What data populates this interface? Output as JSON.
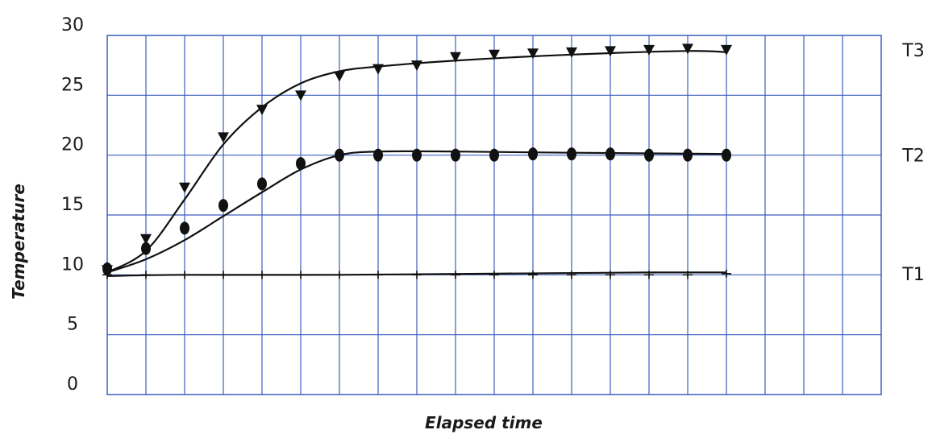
{
  "chart_data": {
    "type": "line",
    "title": "",
    "xlabel": "Elapsed time",
    "ylabel": "Temperature",
    "ylim": [
      0,
      30
    ],
    "yticks": [
      0,
      5,
      10,
      15,
      20,
      25,
      30
    ],
    "x_gridlines": 20,
    "grid": true,
    "legend": "right",
    "colors": {
      "grid": "#3d5fbf",
      "frame": "#3d5fbf",
      "line": "#111111",
      "marker": "#111111"
    },
    "x": [
      0,
      1,
      2,
      3,
      4,
      5,
      6,
      7,
      8,
      9,
      10,
      11,
      12,
      13,
      14,
      15,
      16
    ],
    "series": [
      {
        "name": "T1",
        "marker": "plus",
        "values": [
          10.0,
          10.0,
          10.0,
          10.0,
          10.0,
          10.0,
          10.0,
          10.0,
          10.0,
          10.0,
          10.0,
          10.0,
          10.0,
          10.0,
          10.0,
          10.0,
          10.1
        ],
        "curve": [
          [
            0,
            9.9
          ],
          [
            2,
            10.0
          ],
          [
            6,
            10.0
          ],
          [
            10,
            10.1
          ],
          [
            14,
            10.2
          ],
          [
            16,
            10.2
          ]
        ]
      },
      {
        "name": "T2",
        "marker": "circle",
        "values": [
          10.5,
          12.2,
          13.9,
          15.8,
          17.6,
          19.3,
          20.0,
          20.0,
          20.0,
          20.0,
          20.0,
          20.1,
          20.1,
          20.1,
          20.0,
          20.0,
          20.0
        ],
        "curve": [
          [
            0,
            10.2
          ],
          [
            1,
            11.3
          ],
          [
            2,
            12.9
          ],
          [
            3,
            14.9
          ],
          [
            4,
            16.9
          ],
          [
            5,
            18.8
          ],
          [
            6,
            20.0
          ],
          [
            7,
            20.3
          ],
          [
            9,
            20.3
          ],
          [
            12,
            20.2
          ],
          [
            16,
            20.1
          ]
        ]
      },
      {
        "name": "T3",
        "marker": "triangle-down",
        "values": [
          10.4,
          13.0,
          17.3,
          21.5,
          23.8,
          25.0,
          26.6,
          27.2,
          27.5,
          28.2,
          28.4,
          28.5,
          28.6,
          28.7,
          28.8,
          28.9,
          28.8
        ],
        "curve": [
          [
            0,
            10.2
          ],
          [
            1,
            12.0
          ],
          [
            2,
            16.3
          ],
          [
            3,
            20.9
          ],
          [
            4,
            24.0
          ],
          [
            5,
            26.0
          ],
          [
            6,
            27.0
          ],
          [
            7,
            27.4
          ],
          [
            9,
            27.9
          ],
          [
            12,
            28.4
          ],
          [
            15,
            28.7
          ],
          [
            16,
            28.6
          ]
        ]
      }
    ]
  }
}
